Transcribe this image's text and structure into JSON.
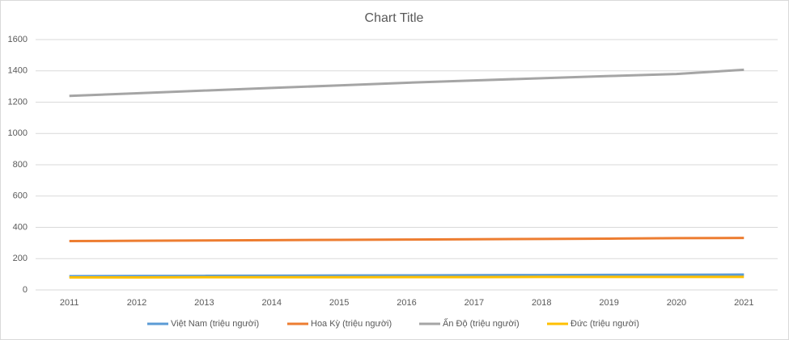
{
  "chart_data": {
    "type": "line",
    "title": "Chart Title",
    "categories": [
      "2011",
      "2012",
      "2013",
      "2014",
      "2015",
      "2016",
      "2017",
      "2018",
      "2019",
      "2020",
      "2021"
    ],
    "series": [
      {
        "name": "Việt Nam (triệu người)",
        "color": "#5b9bd5",
        "values": [
          88,
          89,
          90,
          91,
          92,
          93,
          94,
          95,
          96,
          97,
          98
        ]
      },
      {
        "name": "Hoa Kỳ  (triệu người)",
        "color": "#ed7d31",
        "values": [
          312,
          314,
          316,
          318,
          320,
          322,
          324,
          326,
          328,
          331,
          332
        ]
      },
      {
        "name": "Ấn Độ (triệu người)",
        "color": "#a5a5a5",
        "values": [
          1240,
          1257,
          1274,
          1291,
          1307,
          1324,
          1339,
          1353,
          1367,
          1380,
          1407
        ]
      },
      {
        "name": "Đức (triệu người)",
        "color": "#ffc000",
        "values": [
          80,
          80,
          81,
          81,
          81,
          82,
          82,
          83,
          83,
          83,
          83
        ]
      }
    ],
    "ylim": [
      0,
      1600
    ],
    "yticks": [
      0,
      200,
      400,
      600,
      800,
      1000,
      1200,
      1400,
      1600
    ],
    "grid": true,
    "legend": "bottom"
  }
}
